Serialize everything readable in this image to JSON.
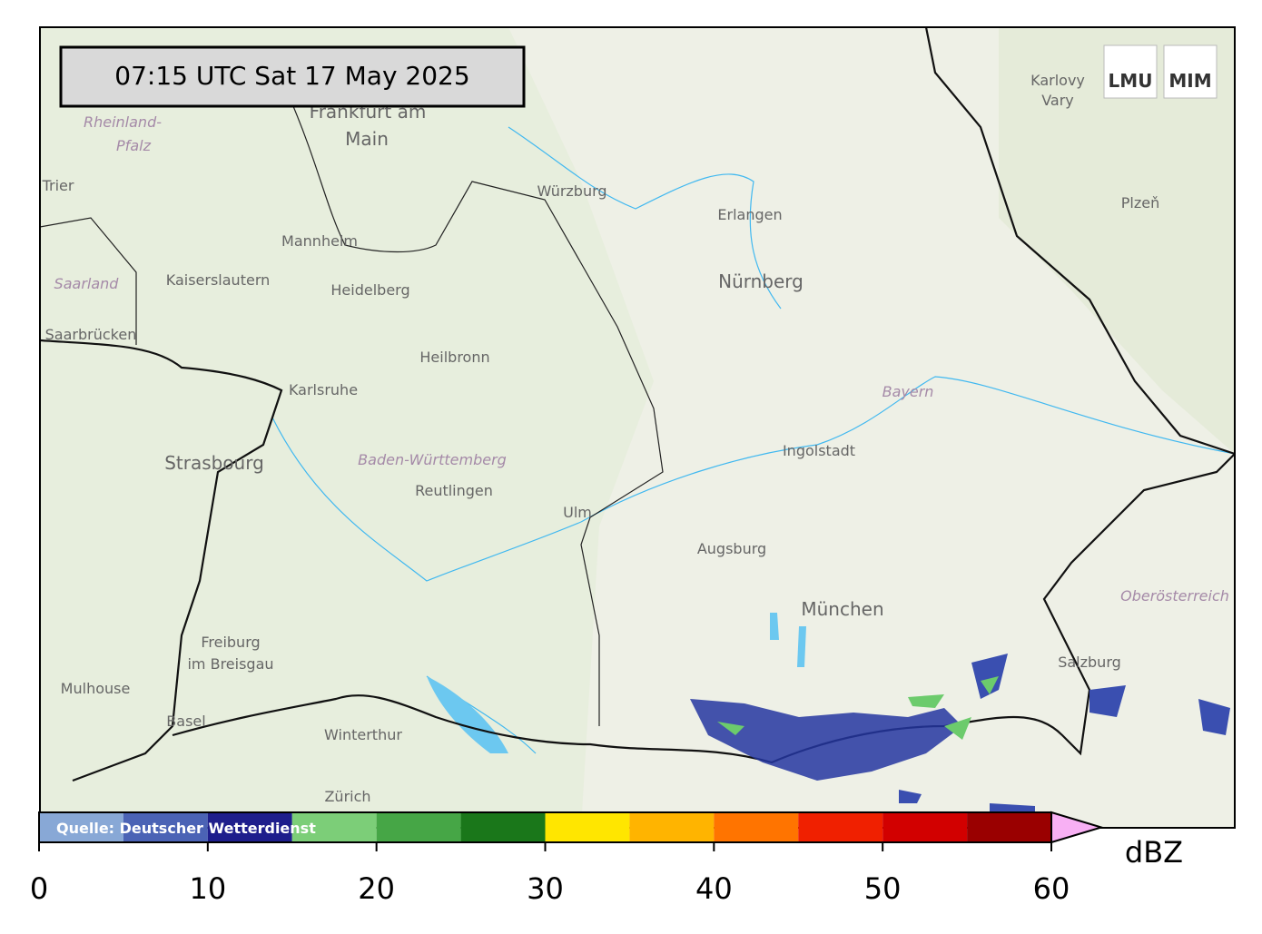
{
  "header": {
    "timestamp": "07:15 UTC  Sat 17 May 2025",
    "logos": [
      "LMU",
      "MIM"
    ]
  },
  "map": {
    "places": [
      "Frankfurt am",
      "Main",
      "Rheinland-",
      "Pfalz",
      "Trier",
      "Saarland",
      "Saarbrücken",
      "Kaiserslautern",
      "Mannheim",
      "Heidelberg",
      "Heilbronn",
      "Karlsruhe",
      "Strasbourg",
      "Baden-Württemberg",
      "Reutlingen",
      "Ulm",
      "Würzburg",
      "Erlangen",
      "Nürnberg",
      "Ingolstadt",
      "Bayern",
      "Augsburg",
      "München",
      "Karlovy",
      "Vary",
      "Plzeň",
      "Oberösterreich",
      "Salzburg",
      "Freiburg",
      "im Breisgau",
      "Mulhouse",
      "Basel",
      "Winterthur",
      "Zürich"
    ]
  },
  "colorbar": {
    "bounds": [
      0,
      5,
      10,
      15,
      20,
      25,
      30,
      35,
      40,
      45,
      50,
      55,
      60
    ],
    "colors": [
      "#88a8d6",
      "#4b63b5",
      "#1e1e8c",
      "#7cce78",
      "#46a646",
      "#1a771a",
      "#ffe600",
      "#ffb400",
      "#ff7400",
      "#f02000",
      "#d20000",
      "#9a0000"
    ],
    "extend_color": "#f8b0f4",
    "ticks": [
      0,
      10,
      20,
      30,
      40,
      50,
      60
    ],
    "label": "dBZ",
    "source": "Quelle: Deutscher Wetterdienst"
  }
}
